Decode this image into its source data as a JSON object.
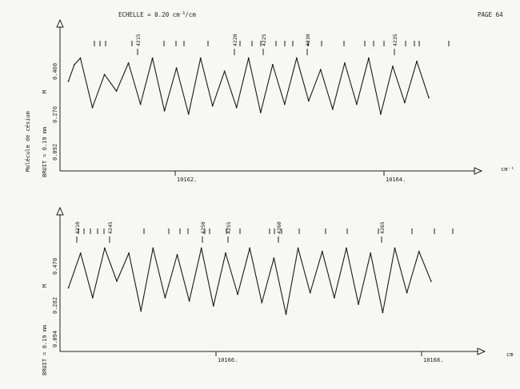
{
  "header": {
    "scale_label": "ECHELLE = 0.20 cm",
    "scale_exponent": "-1",
    "scale_suffix": "/cm",
    "page_label": "PAGE 64"
  },
  "chart_data": [
    {
      "type": "line",
      "title": "",
      "xlabel": "cm⁻¹",
      "ylabel": "Molécule de césium",
      "noise_label": "BRUIT = 0.19 mm",
      "axis_letter": "M",
      "y_ticks": [
        "0.092",
        "0.276",
        "0.460"
      ],
      "x_ticks": [
        "10162.",
        "10164."
      ],
      "line_markers": [
        "4215",
        "4220",
        "4225",
        "4230",
        "4235"
      ],
      "x_range": [
        10161.45,
        10164.7
      ],
      "y_range": [
        0.0,
        0.6
      ],
      "series": [
        {
          "x": [
            10161.5,
            10161.55,
            10161.6,
            10161.7,
            10161.8,
            10161.9,
            10162.0,
            10162.1,
            10162.2,
            10162.3,
            10162.4,
            10162.5,
            10162.6,
            10162.7,
            10162.8,
            10162.9,
            10163.0,
            10163.1,
            10163.2,
            10163.3,
            10163.4,
            10163.5,
            10163.6,
            10163.7,
            10163.8,
            10163.9,
            10164.0,
            10164.1,
            10164.2,
            10164.3,
            10164.4,
            10164.5
          ],
          "y": [
            0.36,
            0.46,
            0.5,
            0.2,
            0.4,
            0.3,
            0.47,
            0.22,
            0.5,
            0.18,
            0.44,
            0.16,
            0.5,
            0.21,
            0.42,
            0.2,
            0.5,
            0.17,
            0.46,
            0.22,
            0.5,
            0.24,
            0.43,
            0.19,
            0.47,
            0.22,
            0.5,
            0.16,
            0.45,
            0.23,
            0.48,
            0.26
          ]
        }
      ]
    },
    {
      "type": "line",
      "title": "",
      "xlabel": "cm",
      "ylabel": "",
      "noise_label": "BRUIT = 0.19 mm",
      "axis_letter": "M",
      "y_ticks": [
        "0.094",
        "0.282",
        "0.470"
      ],
      "x_ticks": [
        "10166.",
        "10168."
      ],
      "line_markers": [
        "4210",
        "4245",
        "4250",
        "4255",
        "4260",
        "4265"
      ],
      "x_range": [
        10165.45,
        10168.7
      ],
      "y_range": [
        0.0,
        0.6
      ],
      "series": [
        {
          "x": [
            10165.5,
            10165.6,
            10165.7,
            10165.8,
            10165.9,
            10166.0,
            10166.1,
            10166.2,
            10166.3,
            10166.4,
            10166.5,
            10166.6,
            10166.7,
            10166.8,
            10166.9,
            10167.0,
            10167.1,
            10167.2,
            10167.3,
            10167.4,
            10167.5,
            10167.6,
            10167.7,
            10167.8,
            10167.9,
            10168.0,
            10168.1,
            10168.2,
            10168.3,
            10168.4,
            10168.5
          ],
          "y": [
            0.26,
            0.47,
            0.2,
            0.5,
            0.3,
            0.47,
            0.12,
            0.5,
            0.2,
            0.46,
            0.18,
            0.5,
            0.15,
            0.47,
            0.22,
            0.5,
            0.17,
            0.44,
            0.1,
            0.5,
            0.23,
            0.48,
            0.2,
            0.5,
            0.16,
            0.47,
            0.11,
            0.5,
            0.23,
            0.48,
            0.3
          ]
        }
      ]
    }
  ]
}
